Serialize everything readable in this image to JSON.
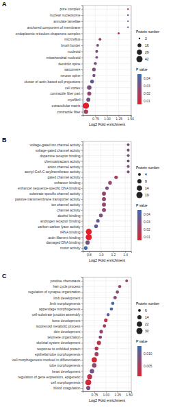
{
  "chart_data": [
    {
      "type": "scatter",
      "label": "A",
      "x_label": "Log2 Fold enrichment",
      "grid": true,
      "categories": [
        "pore complex",
        "nuclear nucleosome",
        "annulate lamellae",
        "anchored component of membrane",
        "endoplasmic reticulum chaperone complex",
        "microvillus",
        "brush border",
        "nucleoid",
        "mitochondrial nucleoid",
        "dendritic spine",
        "sarcomere",
        "neuron spine",
        "cluster of actin-based cell projections",
        "cell cortex",
        "contractile fiber part",
        "myofibril",
        "extracellular matrix",
        "contractile fiber"
      ],
      "values": [
        1.45,
        1.45,
        1.45,
        1.45,
        1.25,
        0.85,
        0.8,
        0.78,
        0.78,
        0.75,
        0.72,
        0.72,
        0.68,
        0.62,
        0.62,
        0.6,
        0.55,
        0.55
      ],
      "sizes": [
        3,
        3,
        3,
        3,
        5,
        8,
        8,
        9,
        8,
        10,
        14,
        10,
        16,
        22,
        18,
        18,
        42,
        20
      ],
      "p_values": [
        0.015,
        0.04,
        0.04,
        0.04,
        0.02,
        0.025,
        0.03,
        0.028,
        0.03,
        0.03,
        0.028,
        0.032,
        0.035,
        0.03,
        0.025,
        0.03,
        0.005,
        0.02
      ],
      "xlim": [
        0.48,
        1.52
      ],
      "xticks": [
        0.75,
        {
          "value": 1,
          "label": "1.00"
        },
        1.25,
        {
          "value": 1.5,
          "label": "1.50"
        }
      ],
      "size_legend": {
        "title": "Protein number",
        "values": [
          3,
          16,
          29,
          42
        ]
      },
      "colorbar": {
        "title": "P value",
        "range": [
          0.005,
          0.045
        ],
        "ticks": [
          0.04,
          0.03,
          0.02,
          0.01
        ]
      }
    },
    {
      "type": "scatter",
      "label": "B",
      "x_label": "Log2 Fold enrichment",
      "grid": true,
      "categories": [
        "voltage-gated ion channel activity",
        "voltage-gated channel activity",
        "dopamine receptor binding",
        "chemoattractant activity",
        "anion channel activity",
        "acetyl-CoA C-acyltransferase activity",
        "gated channel activity",
        "enhancer binding",
        "enhancer sequence-specific DNA binding",
        "substrate-specific channel activity",
        "passive transmembrane transporter activity",
        "ion channel activity",
        "channel activity",
        "alcohol binding",
        "androgen receptor binding",
        "carbon-carbon lyase activity",
        "rRNA binding",
        "actin filament binding",
        "damaged DNA binding",
        "motor activity"
      ],
      "values": [
        1.45,
        1.45,
        1.45,
        1.45,
        1.45,
        1.45,
        1.25,
        1.15,
        1.1,
        1.05,
        1.05,
        1.05,
        1.05,
        1.0,
        0.95,
        0.92,
        0.8,
        0.8,
        0.78,
        0.75
      ],
      "sizes": [
        4,
        4,
        4,
        4,
        4,
        4,
        6,
        7,
        6,
        8,
        8,
        8,
        8,
        7,
        6,
        7,
        18,
        19,
        9,
        7
      ],
      "p_values": [
        0.03,
        0.03,
        0.03,
        0.03,
        0.03,
        0.03,
        0.02,
        0.025,
        0.03,
        0.025,
        0.025,
        0.025,
        0.025,
        0.03,
        0.035,
        0.035,
        0.005,
        0.005,
        0.03,
        0.045
      ],
      "xlim": [
        0.7,
        1.5
      ],
      "xticks": [
        0.8,
        {
          "value": 1,
          "label": "1.0"
        },
        1.2,
        1.4
      ],
      "size_legend": {
        "title": "Protein number",
        "values": [
          4,
          9,
          14,
          19
        ]
      },
      "colorbar": {
        "title": "P value",
        "range": [
          0.005,
          0.045
        ],
        "ticks": [
          0.04,
          0.03,
          0.02,
          0.01
        ]
      }
    },
    {
      "type": "scatter",
      "label": "C",
      "x_label": "Log2 Fold enrichment",
      "grid": true,
      "categories": [
        "positive chemotaxis",
        "hair cycle process",
        "regulation of synapse organization",
        "limb development",
        "limb morphogenesis",
        "appendage morphogenesis",
        "cell-substrate junction assembly",
        "bone development",
        "isoprenoid metabolic process",
        "skin development",
        "telomere organization",
        "skeletal system development",
        "response to unfolded protein",
        "epithelial tube morphogenesis",
        "cell morphogenesis involved in differentiation",
        "tube morphogenesis",
        "heart development",
        "regulation of gene expression, epigenetic",
        "cell morphogenesis",
        "blood coagulation"
      ],
      "values": [
        1.45,
        1.3,
        1.25,
        1.2,
        1.15,
        1.12,
        1.05,
        1.0,
        0.97,
        0.9,
        0.88,
        0.85,
        0.8,
        0.8,
        0.75,
        0.75,
        0.7,
        0.65,
        0.62,
        0.62
      ],
      "sizes": [
        6,
        7,
        8,
        9,
        8,
        8,
        7,
        10,
        9,
        10,
        9,
        14,
        12,
        13,
        22,
        16,
        15,
        20,
        28,
        14
      ],
      "p_values": [
        0.007,
        0.007,
        0.008,
        0.008,
        0.012,
        0.012,
        0.011,
        0.004,
        0.006,
        0.007,
        0.008,
        0.004,
        0.004,
        0.006,
        0.002,
        0.007,
        0.009,
        0.004,
        0.002,
        0.008
      ],
      "xlim": [
        0.5,
        1.55
      ],
      "xticks": [
        0.75,
        {
          "value": 1,
          "label": "1.00"
        },
        1.25,
        {
          "value": 1.5,
          "label": "1.50"
        }
      ],
      "size_legend": {
        "title": "Protein number",
        "values": [
          6,
          14,
          22,
          30
        ]
      },
      "colorbar": {
        "title": "P value",
        "range": [
          0.001,
          0.013
        ],
        "ticks": [
          {
            "value": 0.01,
            "label": "0.010"
          },
          {
            "value": 0.005,
            "label": "0.005"
          }
        ]
      }
    }
  ]
}
